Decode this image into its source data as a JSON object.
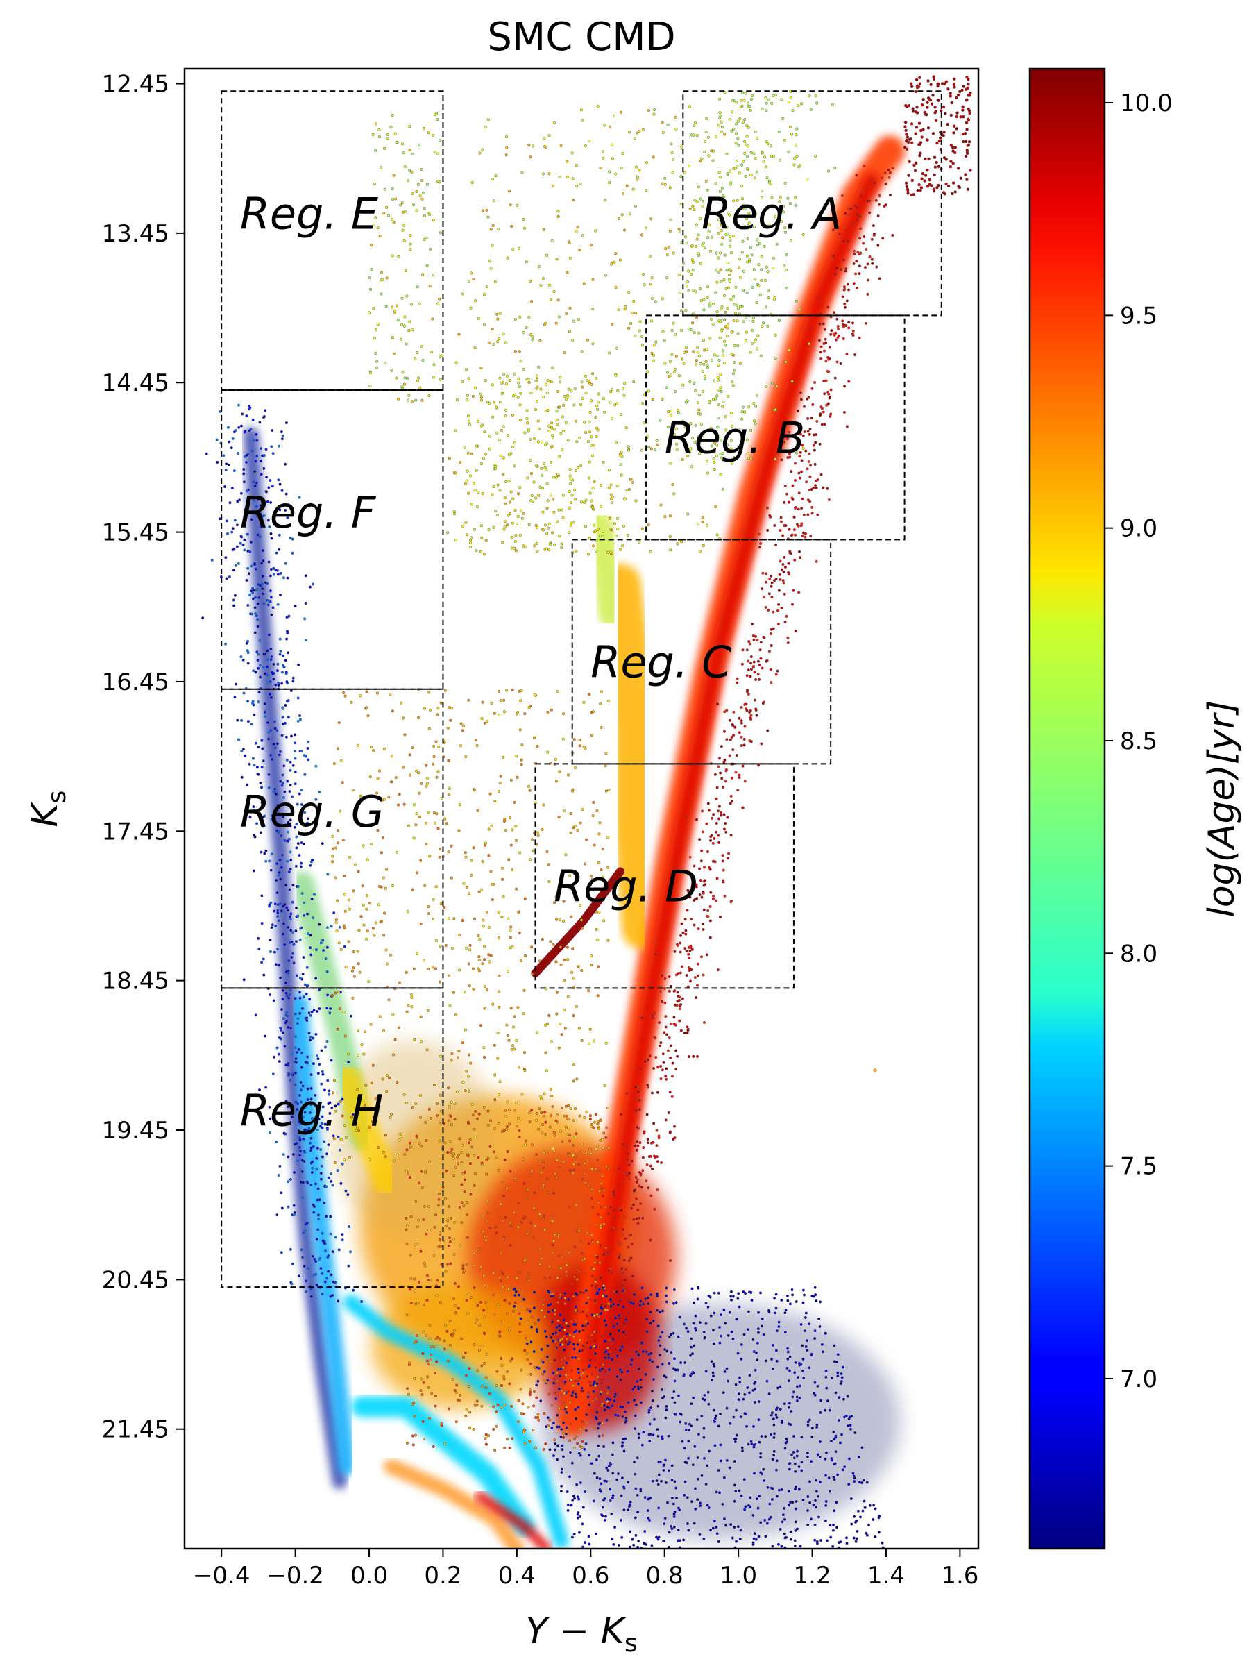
{
  "chart_data": {
    "type": "scatter",
    "title": "SMC CMD",
    "xlabel": "Y − K",
    "xlabel_sub": "s",
    "ylabel": "K",
    "ylabel_sub": "s",
    "xlim": [
      -0.5,
      1.65
    ],
    "ylim": [
      22.25,
      12.35
    ],
    "y_inverted": true,
    "x_ticks": [
      -0.4,
      -0.2,
      0.0,
      0.2,
      0.4,
      0.6,
      0.8,
      1.0,
      1.2,
      1.4,
      1.6
    ],
    "x_tick_labels": [
      "−0.4",
      "−0.2",
      "0.0",
      "0.2",
      "0.4",
      "0.6",
      "0.8",
      "1.0",
      "1.2",
      "1.4",
      "1.6"
    ],
    "y_ticks": [
      12.45,
      13.45,
      14.45,
      15.45,
      16.45,
      17.45,
      18.45,
      19.45,
      20.45,
      21.45
    ],
    "y_tick_labels": [
      "12.45",
      "13.45",
      "14.45",
      "15.45",
      "16.45",
      "17.45",
      "18.45",
      "19.45",
      "20.45",
      "21.45"
    ],
    "grid": false,
    "colorbar": {
      "label": "log(Age)[yr]",
      "range": [
        6.6,
        10.08
      ],
      "ticks": [
        7.0,
        7.5,
        8.0,
        8.5,
        9.0,
        9.5,
        10.0
      ],
      "tick_labels": [
        "7.0",
        "7.5",
        "8.0",
        "8.5",
        "9.0",
        "9.5",
        "10.0"
      ],
      "colormap": "jet"
    },
    "regions": [
      {
        "name": "Reg. A",
        "x0": 0.85,
        "x1": 1.55,
        "y0": 12.5,
        "y1": 14.0,
        "label_x": 0.9,
        "label_y": 13.42,
        "color": "#8b0000"
      },
      {
        "name": "Reg. B",
        "x0": 0.75,
        "x1": 1.45,
        "y0": 14.0,
        "y1": 15.5,
        "label_x": 0.8,
        "label_y": 14.92,
        "color": "#8b0000"
      },
      {
        "name": "Reg. C",
        "x0": 0.55,
        "x1": 1.25,
        "y0": 15.5,
        "y1": 17.0,
        "label_x": 0.6,
        "label_y": 16.42,
        "color": "#8b0000"
      },
      {
        "name": "Reg. D",
        "x0": 0.45,
        "x1": 1.15,
        "y0": 17.0,
        "y1": 18.5,
        "label_x": 0.5,
        "label_y": 17.92,
        "color": "#8b0000"
      },
      {
        "name": "Reg. E",
        "x0": -0.4,
        "x1": 0.2,
        "y0": 12.5,
        "y1": 14.5,
        "label_x": -0.35,
        "label_y": 13.42,
        "color": "#00008b"
      },
      {
        "name": "Reg. F",
        "x0": -0.4,
        "x1": 0.2,
        "y0": 14.5,
        "y1": 16.5,
        "label_x": -0.35,
        "label_y": 15.42,
        "color": "#00008b"
      },
      {
        "name": "Reg. G",
        "x0": -0.4,
        "x1": 0.2,
        "y0": 16.5,
        "y1": 18.5,
        "label_x": -0.35,
        "label_y": 17.42,
        "color": "#00008b"
      },
      {
        "name": "Reg. H",
        "x0": -0.4,
        "x1": 0.2,
        "y0": 18.5,
        "y1": 20.5,
        "label_x": -0.35,
        "label_y": 19.42,
        "color": "#00008b"
      }
    ]
  }
}
